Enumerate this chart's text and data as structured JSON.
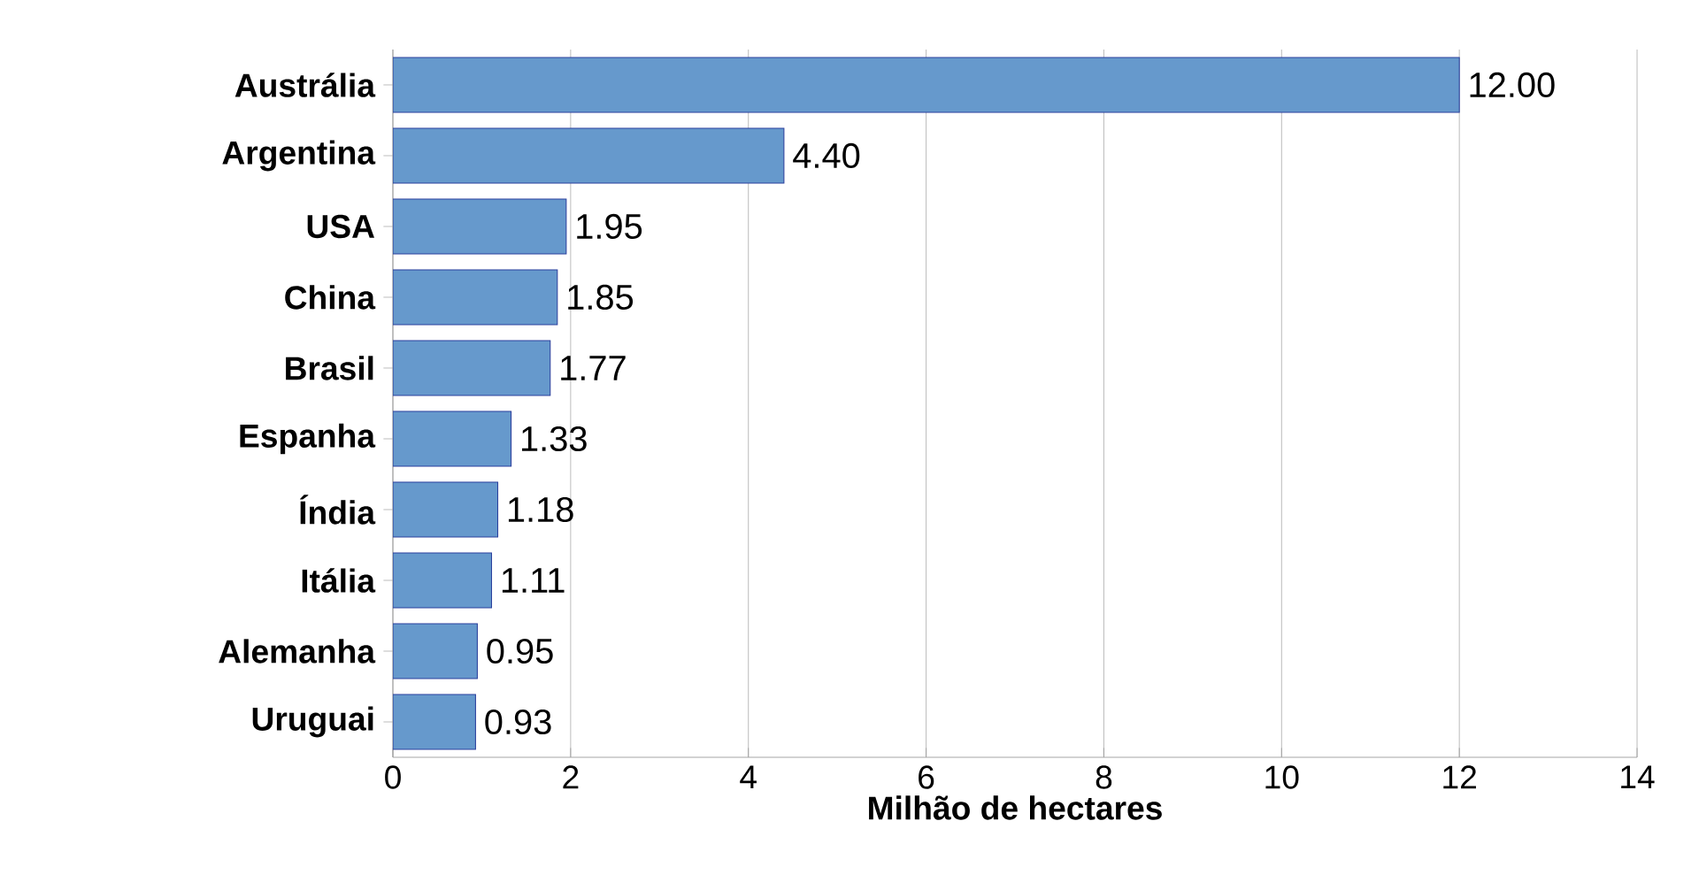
{
  "chart_data": {
    "type": "bar",
    "orientation": "horizontal",
    "xlabel": "Milhão de hectares",
    "categories": [
      "Austrália",
      "Argentina",
      "USA",
      "China",
      "Brasil",
      "Espanha",
      "Índia",
      "Itália",
      "Alemanha",
      "Uruguai"
    ],
    "values": [
      12.0,
      4.4,
      1.95,
      1.85,
      1.77,
      1.33,
      1.18,
      1.11,
      0.95,
      0.93
    ],
    "value_labels": [
      "12.00",
      "4.40",
      "1.95",
      "1.85",
      "1.77",
      "1.33",
      "1.18",
      "1.11",
      "0.95",
      "0.93"
    ],
    "color": "#6699cc",
    "xlim": [
      0,
      14
    ],
    "xticks": [
      0,
      2,
      4,
      6,
      8,
      10,
      12,
      14
    ],
    "grid": "x"
  }
}
